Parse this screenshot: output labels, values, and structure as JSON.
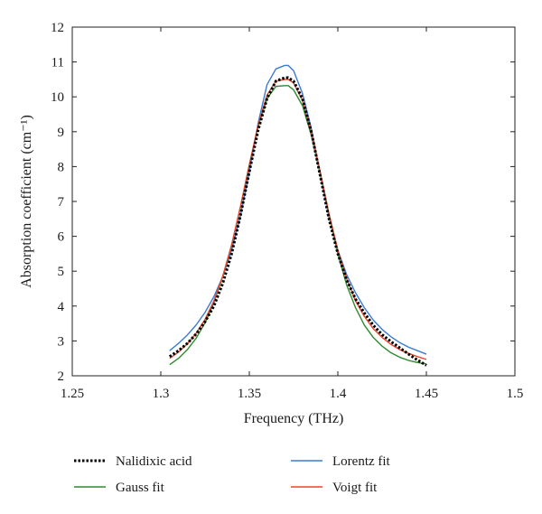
{
  "chart_data": {
    "type": "line",
    "xlabel": "Frequency (THz)",
    "ylabel": "Absorption coefficient (cm⁻¹)",
    "xlim": [
      1.25,
      1.5
    ],
    "ylim": [
      2,
      12
    ],
    "xticks": [
      1.25,
      1.3,
      1.35,
      1.4,
      1.45,
      1.5
    ],
    "xtick_labels": [
      "1.25",
      "1.3",
      "1.35",
      "1.4",
      "1.45",
      "1.5"
    ],
    "yticks": [
      2,
      3,
      4,
      5,
      6,
      7,
      8,
      9,
      10,
      11,
      12
    ],
    "ytick_labels": [
      "2",
      "3",
      "4",
      "5",
      "6",
      "7",
      "8",
      "9",
      "10",
      "11",
      "12"
    ],
    "grid": false,
    "legend_position": "bottom",
    "series": [
      {
        "name": "Nalidixic acid",
        "color": "#000000",
        "style": "dotted",
        "x": [
          1.305,
          1.31,
          1.315,
          1.32,
          1.325,
          1.33,
          1.335,
          1.34,
          1.345,
          1.35,
          1.355,
          1.36,
          1.365,
          1.37,
          1.372,
          1.375,
          1.38,
          1.385,
          1.39,
          1.395,
          1.4,
          1.405,
          1.41,
          1.415,
          1.42,
          1.425,
          1.43,
          1.435,
          1.44,
          1.445,
          1.45
        ],
        "y": [
          2.55,
          2.72,
          2.93,
          3.2,
          3.55,
          4.0,
          4.65,
          5.5,
          6.6,
          7.85,
          9.05,
          9.95,
          10.45,
          10.55,
          10.55,
          10.45,
          9.95,
          9.0,
          7.75,
          6.5,
          5.5,
          4.75,
          4.2,
          3.8,
          3.45,
          3.18,
          2.98,
          2.8,
          2.62,
          2.45,
          2.3
        ]
      },
      {
        "name": "Lorentz fit",
        "color": "#3a7bd5",
        "style": "solid",
        "x": [
          1.305,
          1.31,
          1.315,
          1.32,
          1.325,
          1.33,
          1.335,
          1.34,
          1.345,
          1.35,
          1.355,
          1.36,
          1.365,
          1.37,
          1.372,
          1.375,
          1.38,
          1.385,
          1.39,
          1.395,
          1.4,
          1.405,
          1.41,
          1.415,
          1.42,
          1.425,
          1.43,
          1.435,
          1.44,
          1.445,
          1.45
        ],
        "y": [
          2.72,
          2.93,
          3.17,
          3.46,
          3.82,
          4.27,
          4.85,
          5.6,
          6.6,
          7.85,
          9.25,
          10.35,
          10.8,
          10.9,
          10.9,
          10.75,
          10.1,
          9.1,
          7.8,
          6.55,
          5.6,
          4.9,
          4.38,
          3.95,
          3.6,
          3.33,
          3.12,
          2.95,
          2.82,
          2.72,
          2.62
        ]
      },
      {
        "name": "Gauss fit",
        "color": "#2e8b2e",
        "style": "solid",
        "x": [
          1.305,
          1.31,
          1.315,
          1.32,
          1.325,
          1.33,
          1.335,
          1.34,
          1.345,
          1.35,
          1.355,
          1.36,
          1.365,
          1.37,
          1.372,
          1.375,
          1.38,
          1.385,
          1.39,
          1.395,
          1.4,
          1.405,
          1.41,
          1.415,
          1.42,
          1.425,
          1.43,
          1.435,
          1.44,
          1.445,
          1.45
        ],
        "y": [
          2.32,
          2.5,
          2.75,
          3.08,
          3.52,
          4.1,
          4.85,
          5.75,
          6.85,
          8.05,
          9.15,
          9.95,
          10.3,
          10.32,
          10.32,
          10.2,
          9.75,
          8.9,
          7.8,
          6.6,
          5.5,
          4.6,
          3.95,
          3.45,
          3.1,
          2.85,
          2.66,
          2.53,
          2.44,
          2.38,
          2.34
        ]
      },
      {
        "name": "Voigt fit",
        "color": "#e8452c",
        "style": "solid",
        "x": [
          1.305,
          1.31,
          1.315,
          1.32,
          1.325,
          1.33,
          1.335,
          1.34,
          1.345,
          1.35,
          1.355,
          1.36,
          1.365,
          1.37,
          1.372,
          1.375,
          1.38,
          1.385,
          1.39,
          1.395,
          1.4,
          1.405,
          1.41,
          1.415,
          1.42,
          1.425,
          1.43,
          1.435,
          1.44,
          1.445,
          1.45
        ],
        "y": [
          2.5,
          2.68,
          2.92,
          3.22,
          3.62,
          4.15,
          4.85,
          5.75,
          6.85,
          8.05,
          9.2,
          10.05,
          10.45,
          10.5,
          10.5,
          10.4,
          9.9,
          9.0,
          7.85,
          6.65,
          5.6,
          4.78,
          4.15,
          3.7,
          3.35,
          3.1,
          2.9,
          2.75,
          2.64,
          2.55,
          2.47
        ]
      }
    ],
    "legend_order": [
      0,
      1,
      2,
      3
    ]
  }
}
